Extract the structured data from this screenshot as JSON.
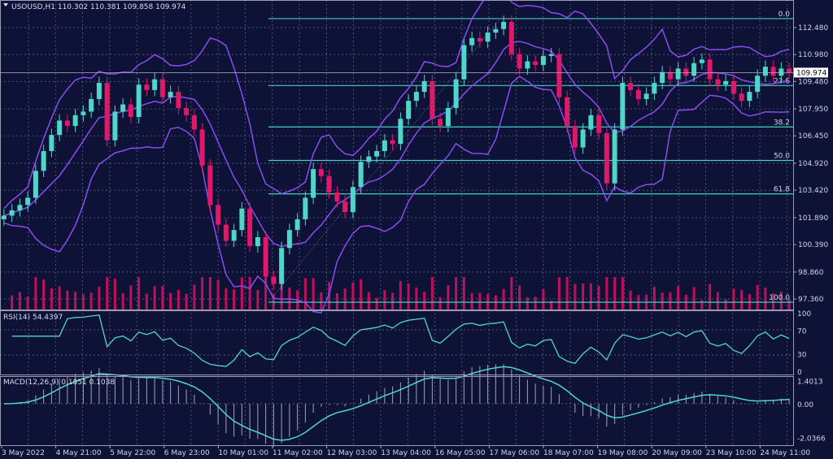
{
  "header": {
    "symbol": "USOUSD,H1",
    "open": "110.302",
    "high": "110.381",
    "low": "109.858",
    "close": "109.974"
  },
  "colors": {
    "background": "#0f1237",
    "bull": "#4fd6c8",
    "bear": "#e0186a",
    "bands": "#8a4cf0",
    "fib": "#3fd0c0",
    "indicator": "#4fd6c8",
    "grid": "#6a6d8a",
    "volume": "#c0105a"
  },
  "chart_data": [
    {
      "type": "candlestick",
      "title": "USOUSD,H1",
      "price_axis_ticks": [
        "112.480",
        "110.980",
        "109.480",
        "107.950",
        "106.450",
        "104.920",
        "103.420",
        "101.890",
        "100.390",
        "98.860",
        "97.360"
      ],
      "ylim": [
        96.85,
        114.0
      ],
      "current_price": "109.974",
      "overlays": [
        "Bollinger Bands",
        "Volumes"
      ],
      "fibonacci": {
        "high": 112.98,
        "low": 97.18,
        "levels": [
          {
            "label": "0.0",
            "ratio": 0
          },
          {
            "label": "23.6",
            "ratio": 0.236
          },
          {
            "label": "38.2",
            "ratio": 0.382
          },
          {
            "label": "50.0",
            "ratio": 0.5
          },
          {
            "label": "61.8",
            "ratio": 0.618
          },
          {
            "label": "100.0",
            "ratio": 1
          }
        ]
      },
      "x_tick_labels": [
        "3 May 2022",
        "4 May 21:00",
        "5 May 22:00",
        "6 May 23:00",
        "10 May 01:00",
        "11 May 02:00",
        "12 May 03:00",
        "13 May 04:00",
        "16 May 05:00",
        "17 May 06:00",
        "18 May 07:00",
        "19 May 08:00",
        "20 May 09:00",
        "23 May 10:00",
        "24 May 11:00"
      ],
      "closes": [
        102.0,
        102.3,
        102.6,
        103.0,
        104.5,
        105.6,
        106.5,
        107.3,
        107.0,
        107.6,
        107.8,
        108.5,
        109.4,
        106.2,
        107.8,
        108.2,
        107.5,
        109.3,
        109.0,
        109.6,
        108.6,
        108.9,
        108.0,
        107.6,
        106.8,
        104.8,
        102.6,
        101.5,
        100.6,
        101.2,
        102.4,
        100.3,
        100.8,
        98.6,
        98.2,
        100.2,
        101.2,
        101.8,
        103.0,
        104.6,
        104.2,
        103.3,
        102.8,
        102.2,
        103.6,
        105.0,
        105.3,
        105.6,
        106.2,
        106.0,
        107.4,
        108.4,
        108.9,
        109.5,
        107.4,
        107.0,
        108.0,
        109.6,
        111.5,
        111.9,
        111.7,
        112.2,
        112.4,
        112.8,
        111.0,
        110.2,
        110.6,
        110.4,
        110.9,
        111.0,
        108.6,
        107.0,
        105.8,
        106.8,
        107.6,
        106.6,
        103.8,
        106.8,
        109.4,
        109.0,
        108.5,
        108.8,
        109.4,
        110.0,
        109.6,
        110.2,
        109.8,
        110.5,
        110.7,
        109.6,
        109.3,
        109.5,
        108.8,
        108.4,
        108.9,
        109.8,
        110.3,
        109.8,
        110.2,
        109.974
      ],
      "grid": true
    },
    {
      "type": "line",
      "title": "RSI(14)",
      "value_label": "54.4397",
      "ticks": [
        "100",
        "70",
        "30",
        "0"
      ],
      "ylim": [
        0,
        100
      ]
    },
    {
      "type": "bar+line",
      "title": "MACD(12,26,9)",
      "values_label": "0.1851 0.1038",
      "ticks": [
        "1.4013",
        "0.00",
        "-2.0366"
      ],
      "ylim": [
        -2.0366,
        1.4013
      ]
    }
  ]
}
